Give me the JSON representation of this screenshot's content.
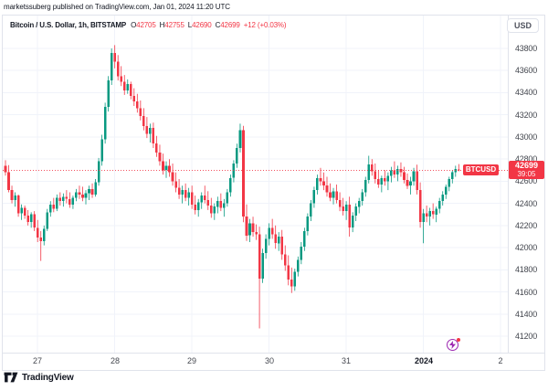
{
  "attribution": "marketssuberg published on TradingView.com, Jan 01, 2024 11:20 UTC",
  "header": {
    "symbol": "Bitcoin / U.S. Dollar, 1h, BITSTAMP",
    "quotes": [
      {
        "k": "O",
        "v": "42705"
      },
      {
        "k": "H",
        "v": "42755"
      },
      {
        "k": "L",
        "v": "42690"
      },
      {
        "k": "C",
        "v": "42699"
      }
    ],
    "change": "+12 (+0.03%)"
  },
  "currency_button": "USD",
  "price_flag": {
    "symbol": "BTCUSD",
    "price": "42699",
    "countdown": "39:05"
  },
  "logo": {
    "text": "TradingView"
  },
  "colors": {
    "up": "#089981",
    "down": "#f23645",
    "grid": "#f0f3fa",
    "axis_text": "#44474f",
    "border": "#e0e3eb",
    "flag_bg": "#f23645",
    "event_purple": "#9c27b0"
  },
  "chart_data": {
    "type": "candlestick",
    "title": "Bitcoin / U.S. Dollar",
    "exchange": "BITSTAMP",
    "interval": "1h",
    "currency": "USD",
    "last_price": 42699,
    "ylim": [
      41043,
      43957
    ],
    "y_ticks": [
      43800,
      43600,
      43400,
      43200,
      43000,
      42800,
      42600,
      42400,
      42200,
      42000,
      41800,
      41600,
      41400,
      41200
    ],
    "x_ticks": [
      {
        "i": 10,
        "label": "27",
        "bold": false
      },
      {
        "i": 34,
        "label": "28",
        "bold": false
      },
      {
        "i": 58,
        "label": "29",
        "bold": false
      },
      {
        "i": 82,
        "label": "30",
        "bold": false
      },
      {
        "i": 106,
        "label": "31",
        "bold": false
      },
      {
        "i": 130,
        "label": "2024",
        "bold": true
      },
      {
        "i": 154,
        "label": "2",
        "bold": false
      }
    ],
    "candles": [
      [
        42740,
        42790,
        42650,
        42680
      ],
      [
        42680,
        42745,
        42500,
        42520
      ],
      [
        42520,
        42560,
        42400,
        42430
      ],
      [
        42430,
        42500,
        42370,
        42470
      ],
      [
        42470,
        42480,
        42280,
        42310
      ],
      [
        42310,
        42390,
        42250,
        42360
      ],
      [
        42360,
        42380,
        42260,
        42290
      ],
      [
        42290,
        42340,
        42200,
        42230
      ],
      [
        42230,
        42320,
        42180,
        42300
      ],
      [
        42300,
        42330,
        42150,
        42180
      ],
      [
        42180,
        42250,
        42050,
        42090
      ],
      [
        42090,
        42150,
        41880,
        42060
      ],
      [
        42060,
        42200,
        42020,
        42170
      ],
      [
        42170,
        42350,
        42150,
        42320
      ],
      [
        42320,
        42420,
        42280,
        42390
      ],
      [
        42390,
        42450,
        42320,
        42350
      ],
      [
        42350,
        42480,
        42330,
        42450
      ],
      [
        42450,
        42500,
        42380,
        42420
      ],
      [
        42420,
        42490,
        42370,
        42460
      ],
      [
        42460,
        42520,
        42400,
        42440
      ],
      [
        42440,
        42500,
        42360,
        42390
      ],
      [
        42390,
        42470,
        42350,
        42450
      ],
      [
        42450,
        42530,
        42420,
        42500
      ],
      [
        42500,
        42560,
        42440,
        42480
      ],
      [
        42480,
        42550,
        42420,
        42450
      ],
      [
        42450,
        42520,
        42390,
        42490
      ],
      [
        42490,
        42560,
        42430,
        42530
      ],
      [
        42530,
        42580,
        42450,
        42480
      ],
      [
        42480,
        42620,
        42460,
        42590
      ],
      [
        42590,
        42810,
        42560,
        42780
      ],
      [
        42780,
        43020,
        42740,
        42980
      ],
      [
        42980,
        43310,
        42940,
        43270
      ],
      [
        43270,
        43550,
        43230,
        43510
      ],
      [
        43510,
        43800,
        43470,
        43760
      ],
      [
        43760,
        43830,
        43620,
        43680
      ],
      [
        43680,
        43740,
        43510,
        43550
      ],
      [
        43550,
        43640,
        43460,
        43500
      ],
      [
        43500,
        43560,
        43380,
        43420
      ],
      [
        43420,
        43520,
        43390,
        43480
      ],
      [
        43480,
        43500,
        43340,
        43370
      ],
      [
        43370,
        43440,
        43280,
        43320
      ],
      [
        43320,
        43390,
        43220,
        43260
      ],
      [
        43260,
        43330,
        43150,
        43190
      ],
      [
        43190,
        43260,
        43060,
        43100
      ],
      [
        43100,
        43180,
        42990,
        43030
      ],
      [
        43030,
        43120,
        42950,
        43080
      ],
      [
        43080,
        43130,
        42900,
        42940
      ],
      [
        42940,
        43010,
        42820,
        42860
      ],
      [
        42860,
        42930,
        42740,
        42780
      ],
      [
        42780,
        42850,
        42660,
        42700
      ],
      [
        42700,
        42780,
        42630,
        42740
      ],
      [
        42740,
        42800,
        42640,
        42680
      ],
      [
        42680,
        42760,
        42560,
        42600
      ],
      [
        42600,
        42680,
        42500,
        42540
      ],
      [
        42540,
        42620,
        42440,
        42480
      ],
      [
        42480,
        42560,
        42400,
        42520
      ],
      [
        42520,
        42580,
        42420,
        42450
      ],
      [
        42450,
        42540,
        42380,
        42500
      ],
      [
        42500,
        42560,
        42350,
        42390
      ],
      [
        42390,
        42470,
        42300,
        42340
      ],
      [
        42340,
        42440,
        42280,
        42410
      ],
      [
        42410,
        42500,
        42350,
        42470
      ],
      [
        42470,
        42560,
        42400,
        42430
      ],
      [
        42430,
        42510,
        42340,
        42380
      ],
      [
        42380,
        42450,
        42270,
        42310
      ],
      [
        42310,
        42400,
        42250,
        42370
      ],
      [
        42370,
        42460,
        42310,
        42420
      ],
      [
        42420,
        42490,
        42330,
        42360
      ],
      [
        42360,
        42440,
        42280,
        42400
      ],
      [
        42400,
        42530,
        42370,
        42500
      ],
      [
        42500,
        42660,
        42460,
        42630
      ],
      [
        42630,
        42790,
        42590,
        42760
      ],
      [
        42760,
        42940,
        42720,
        42900
      ],
      [
        42900,
        43120,
        42860,
        43060
      ],
      [
        43060,
        43100,
        42230,
        42280
      ],
      [
        42280,
        42390,
        42060,
        42110
      ],
      [
        42110,
        42260,
        42050,
        42220
      ],
      [
        42220,
        42280,
        42100,
        42140
      ],
      [
        42140,
        42210,
        42070,
        42120
      ],
      [
        42120,
        42190,
        41270,
        41720
      ],
      [
        41720,
        41990,
        41680,
        41950
      ],
      [
        41950,
        42120,
        41900,
        42080
      ],
      [
        42080,
        42220,
        42020,
        42180
      ],
      [
        42180,
        42260,
        42080,
        42120
      ],
      [
        42120,
        42200,
        41990,
        42040
      ],
      [
        42040,
        42140,
        41970,
        42100
      ],
      [
        42100,
        42160,
        41890,
        41940
      ],
      [
        41940,
        42020,
        41790,
        41840
      ],
      [
        41840,
        41930,
        41660,
        41710
      ],
      [
        41710,
        41820,
        41590,
        41650
      ],
      [
        41650,
        41810,
        41610,
        41780
      ],
      [
        41780,
        41920,
        41740,
        41890
      ],
      [
        41890,
        42050,
        41850,
        42010
      ],
      [
        42010,
        42180,
        41970,
        42150
      ],
      [
        42150,
        42310,
        42110,
        42280
      ],
      [
        42280,
        42430,
        42240,
        42400
      ],
      [
        42400,
        42550,
        42360,
        42520
      ],
      [
        42520,
        42660,
        42480,
        42630
      ],
      [
        42630,
        42720,
        42560,
        42600
      ],
      [
        42600,
        42680,
        42520,
        42560
      ],
      [
        42560,
        42640,
        42460,
        42500
      ],
      [
        42500,
        42580,
        42420,
        42450
      ],
      [
        42450,
        42540,
        42390,
        42510
      ],
      [
        42510,
        42570,
        42400,
        42430
      ],
      [
        42430,
        42500,
        42330,
        42370
      ],
      [
        42370,
        42450,
        42290,
        42330
      ],
      [
        42330,
        42420,
        42250,
        42390
      ],
      [
        42390,
        42460,
        42100,
        42180
      ],
      [
        42180,
        42320,
        42140,
        42290
      ],
      [
        42290,
        42400,
        42240,
        42370
      ],
      [
        42370,
        42450,
        42310,
        42420
      ],
      [
        42420,
        42530,
        42380,
        42500
      ],
      [
        42500,
        42640,
        42460,
        42610
      ],
      [
        42610,
        42830,
        42580,
        42750
      ],
      [
        42750,
        42800,
        42650,
        42690
      ],
      [
        42690,
        42760,
        42580,
        42620
      ],
      [
        42620,
        42700,
        42540,
        42570
      ],
      [
        42570,
        42650,
        42500,
        42630
      ],
      [
        42630,
        42700,
        42560,
        42600
      ],
      [
        42600,
        42680,
        42520,
        42650
      ],
      [
        42650,
        42730,
        42590,
        42700
      ],
      [
        42700,
        42780,
        42630,
        42660
      ],
      [
        42660,
        42740,
        42600,
        42710
      ],
      [
        42710,
        42770,
        42640,
        42680
      ],
      [
        42680,
        42730,
        42580,
        42610
      ],
      [
        42610,
        42670,
        42530,
        42560
      ],
      [
        42560,
        42640,
        42480,
        42600
      ],
      [
        42600,
        42720,
        42560,
        42690
      ],
      [
        42690,
        42750,
        42480,
        42520
      ],
      [
        42520,
        42590,
        42180,
        42230
      ],
      [
        42230,
        42350,
        42040,
        42310
      ],
      [
        42310,
        42380,
        42230,
        42280
      ],
      [
        42280,
        42360,
        42200,
        42330
      ],
      [
        42330,
        42400,
        42260,
        42300
      ],
      [
        42300,
        42370,
        42230,
        42350
      ],
      [
        42350,
        42450,
        42310,
        42420
      ],
      [
        42420,
        42510,
        42380,
        42480
      ],
      [
        42480,
        42570,
        42440,
        42550
      ],
      [
        42550,
        42640,
        42510,
        42620
      ],
      [
        42620,
        42700,
        42580,
        42680
      ],
      [
        42680,
        42740,
        42640,
        42710
      ],
      [
        42705,
        42755,
        42690,
        42699
      ]
    ]
  }
}
